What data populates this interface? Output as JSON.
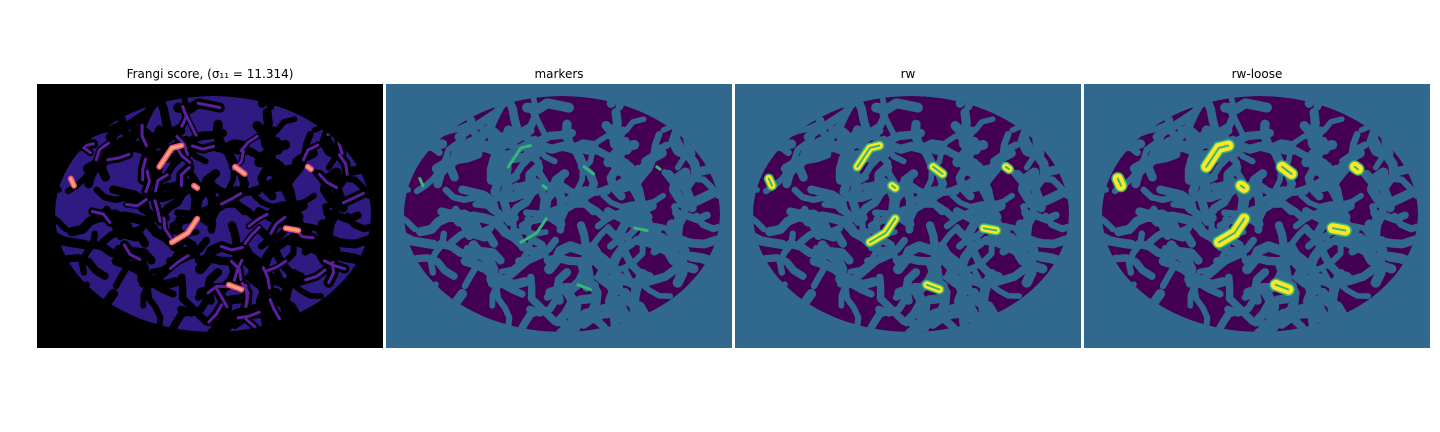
{
  "panels": [
    {
      "title": "Frangi score, (σ₁₁ = 11.314)",
      "colormap": "magma"
    },
    {
      "title": "markers",
      "colormap": "viridis"
    },
    {
      "title": "rw",
      "colormap": "viridis"
    },
    {
      "title": "rw-loose",
      "colormap": "viridis"
    }
  ],
  "colors": {
    "frangi_background": "#000000",
    "frangi_blob": "#2e1a80",
    "frangi_blob_edge": "#5a1fa0",
    "frangi_hot": "#e8508a",
    "frangi_peak": "#fca46a",
    "label_background": "#31688e",
    "label_blob": "#440154",
    "marker": "#35b779",
    "segment_outline": "#35b779",
    "segment_fill": "#fde725"
  }
}
